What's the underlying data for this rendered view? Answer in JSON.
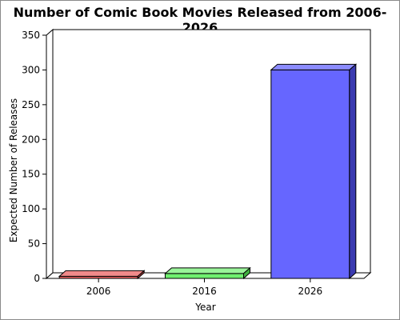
{
  "chart_data": {
    "type": "bar",
    "title": "Number of Comic Book Movies Released from 2006-2026",
    "xlabel": "Year",
    "ylabel": "Expected Number of Releases",
    "categories": [
      "2006",
      "2016",
      "2026"
    ],
    "values": [
      3,
      7,
      300
    ],
    "ylim": [
      0,
      350
    ],
    "yticks": [
      "0",
      "50",
      "100",
      "150",
      "200",
      "250",
      "300",
      "350"
    ],
    "colors": {
      "2006": {
        "front": "#e86060",
        "top": "#f08a8a",
        "side": "#a83a3a"
      },
      "2016": {
        "front": "#6ff06f",
        "top": "#9af59a",
        "side": "#3fb03f"
      },
      "2026": {
        "front": "#6666ff",
        "top": "#8c8cff",
        "side": "#3a3ab0"
      }
    },
    "grid": false,
    "legend": "none"
  }
}
